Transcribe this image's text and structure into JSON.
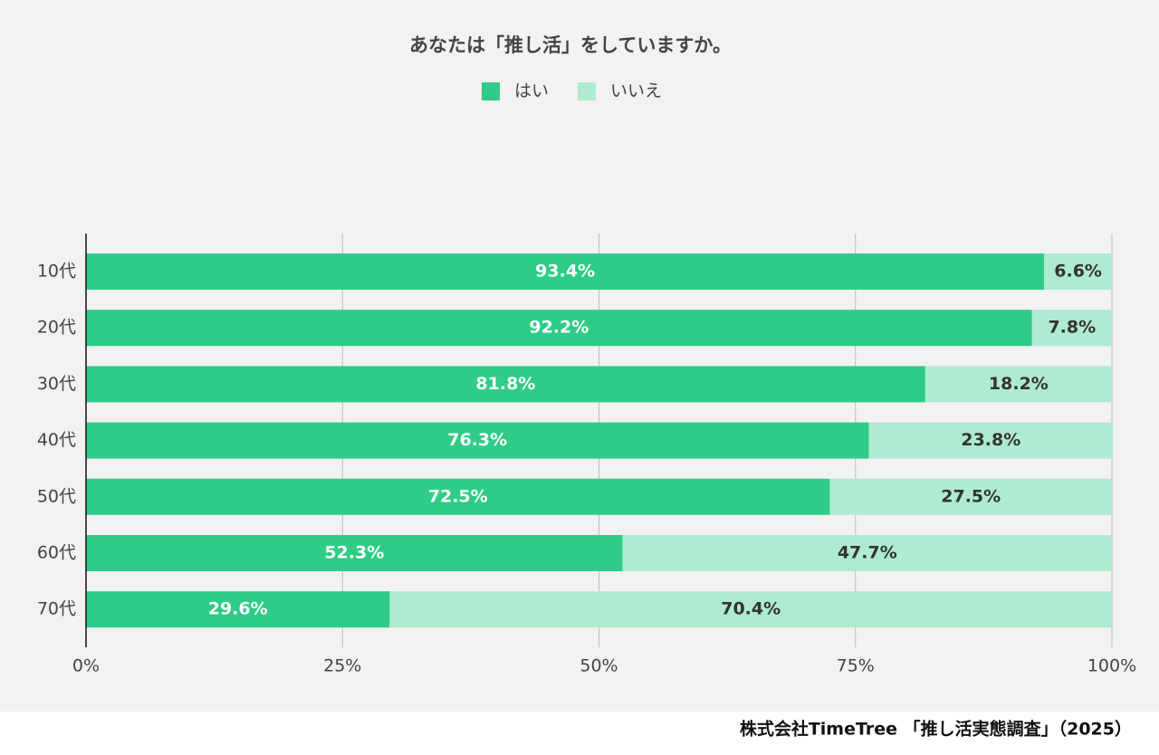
{
  "chart_data": {
    "type": "stacked_barh",
    "title": "あなたは「推し活」をしていますか。",
    "source": "株式会社TimeTree 「推し活実態調査」（2025）",
    "categories": [
      "10代",
      "20代",
      "30代",
      "40代",
      "50代",
      "60代",
      "70代"
    ],
    "series": [
      {
        "name": "はい",
        "color": "#2ecc87",
        "values": [
          93.4,
          92.2,
          81.8,
          76.3,
          72.5,
          52.3,
          29.6
        ],
        "value_labels": [
          "93.4%",
          "92.2%",
          "81.8%",
          "76.3%",
          "72.5%",
          "52.3%",
          "29.6%"
        ]
      },
      {
        "name": "いいえ",
        "color": "#aeebd0",
        "values": [
          6.6,
          7.8,
          18.2,
          23.8,
          27.5,
          47.7,
          70.4
        ],
        "value_labels": [
          "6.6%",
          "7.8%",
          "18.2%",
          "23.8%",
          "27.5%",
          "47.7%",
          "70.4%"
        ]
      }
    ],
    "xlim": [
      0,
      100
    ],
    "xticks": [
      {
        "value": 0,
        "label": "0%"
      },
      {
        "value": 25,
        "label": "25%"
      },
      {
        "value": 50,
        "label": "50%"
      },
      {
        "value": 75,
        "label": "75%"
      },
      {
        "value": 100,
        "label": "100%"
      }
    ],
    "grid": true,
    "legend": "top"
  }
}
